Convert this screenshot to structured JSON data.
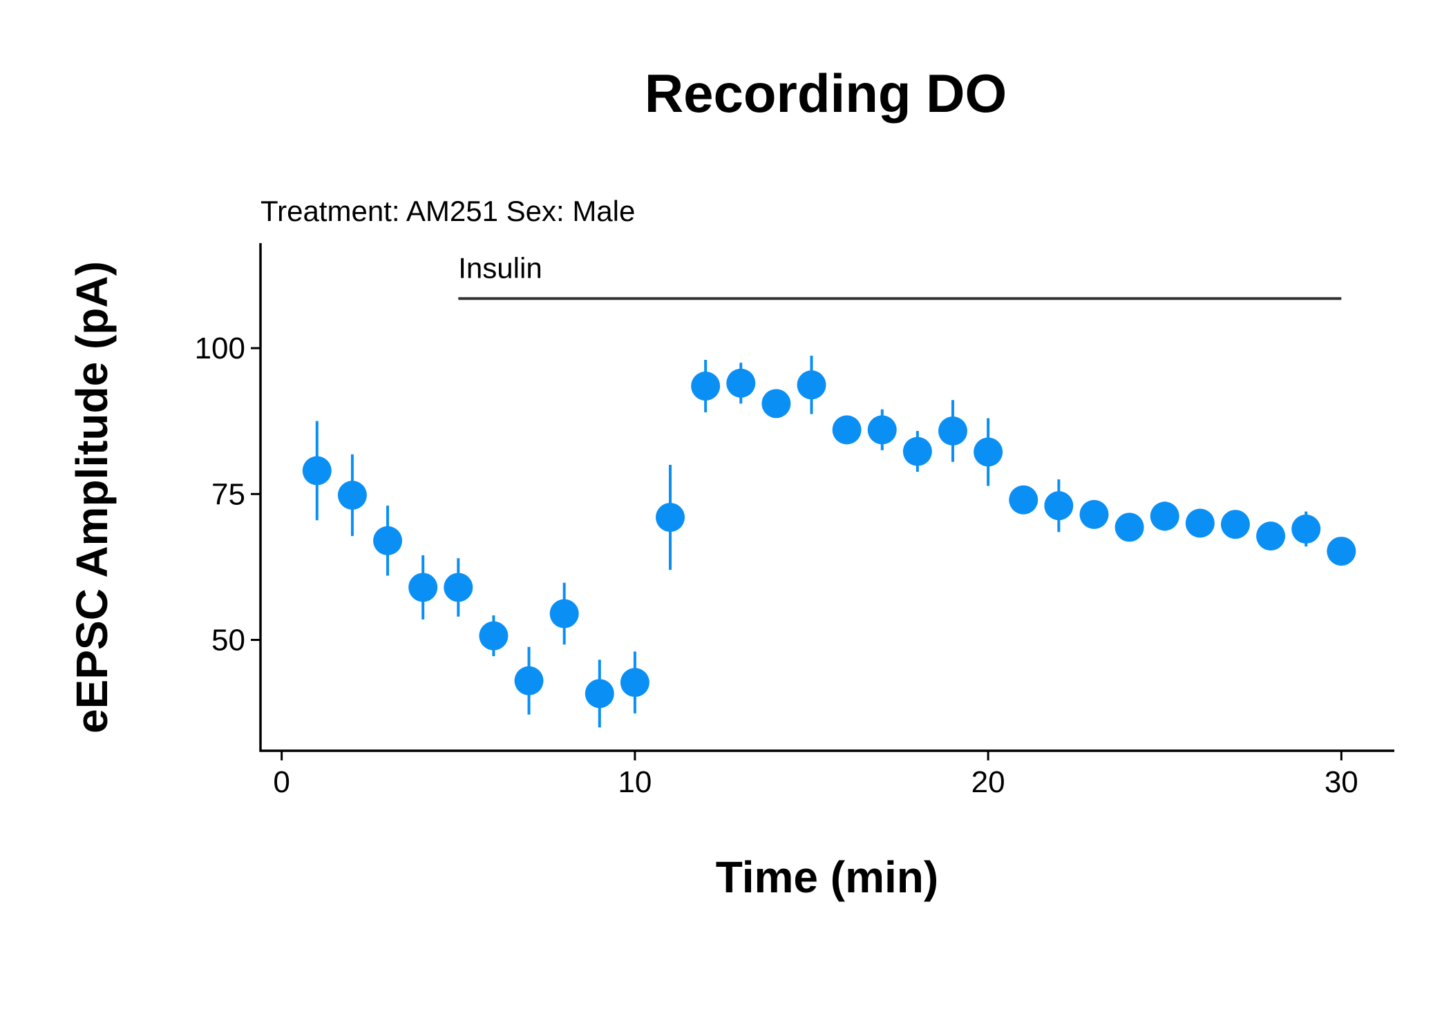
{
  "chart_data": {
    "type": "scatter",
    "title": "Recording DO",
    "subtitle": "Treatment: AM251  Sex: Male",
    "xlabel": "Time (min)",
    "ylabel": "eEPSC Amplitude (pA)",
    "xlim": [
      -0.6,
      31.5
    ],
    "ylim": [
      31,
      118
    ],
    "xticks": [
      0,
      10,
      20,
      30
    ],
    "yticks": [
      50,
      75,
      100
    ],
    "point_color": "#0a8ff5",
    "annotation": {
      "label": "Insulin",
      "x_start": 5,
      "x_end": 30,
      "y": 108.5
    },
    "points": [
      {
        "x": 1,
        "y": 79,
        "err": 8.5
      },
      {
        "x": 2,
        "y": 74.8,
        "err": 7
      },
      {
        "x": 3,
        "y": 67,
        "err": 6
      },
      {
        "x": 4,
        "y": 59,
        "err": 5.5
      },
      {
        "x": 5,
        "y": 59,
        "err": 5
      },
      {
        "x": 6,
        "y": 50.7,
        "err": 3.5
      },
      {
        "x": 7,
        "y": 43,
        "err": 5.8
      },
      {
        "x": 8,
        "y": 54.5,
        "err": 5.3
      },
      {
        "x": 9,
        "y": 40.8,
        "err": 5.8
      },
      {
        "x": 10,
        "y": 42.7,
        "err": 5.3
      },
      {
        "x": 11,
        "y": 71,
        "err": 9
      },
      {
        "x": 12,
        "y": 93.5,
        "err": 4.5
      },
      {
        "x": 13,
        "y": 94,
        "err": 3.5
      },
      {
        "x": 14,
        "y": 90.5,
        "err": 2
      },
      {
        "x": 15,
        "y": 93.7,
        "err": 5
      },
      {
        "x": 16,
        "y": 86,
        "err": 1.5
      },
      {
        "x": 17,
        "y": 86,
        "err": 3.5
      },
      {
        "x": 18,
        "y": 82.3,
        "err": 3.5
      },
      {
        "x": 19,
        "y": 85.8,
        "err": 5.3
      },
      {
        "x": 20,
        "y": 82.2,
        "err": 5.8
      },
      {
        "x": 21,
        "y": 74,
        "err": 1.5
      },
      {
        "x": 22,
        "y": 73,
        "err": 4.5
      },
      {
        "x": 23,
        "y": 71.5,
        "err": 1.8
      },
      {
        "x": 24,
        "y": 69.3,
        "err": 1.5
      },
      {
        "x": 25,
        "y": 71.2,
        "err": 2.5
      },
      {
        "x": 26,
        "y": 70,
        "err": 1.5
      },
      {
        "x": 27,
        "y": 69.8,
        "err": 1.5
      },
      {
        "x": 28,
        "y": 67.8,
        "err": 1.5
      },
      {
        "x": 29,
        "y": 69,
        "err": 3
      },
      {
        "x": 30,
        "y": 65.2,
        "err": 1
      }
    ]
  }
}
